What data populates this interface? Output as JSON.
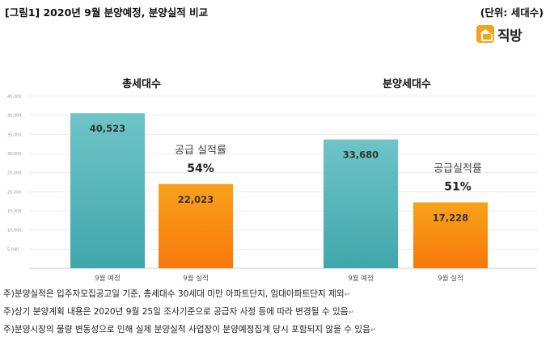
{
  "header": {
    "title": "[그림1] 2020년 9월 분양예정, 분양실적 비교",
    "unit": "(단위: 세대수)"
  },
  "logo": {
    "icon": "house-logo-icon",
    "text": "직방",
    "color": "#f5a31a"
  },
  "chart_data": {
    "type": "bar",
    "yticks": [
      "5,000",
      "10,000",
      "15,000",
      "20,000",
      "25,000",
      "30,000",
      "35,000",
      "40,000",
      "45,000"
    ],
    "ylim": [
      0,
      45000
    ],
    "grid": true,
    "panels": [
      {
        "title": "총세대수",
        "categories": [
          "9월 예정",
          "9월 실적"
        ],
        "values": [
          40523,
          22023
        ],
        "value_labels": [
          "40,523",
          "22,023"
        ],
        "annotation_label": "공급 실적률",
        "annotation_value": "54%"
      },
      {
        "title": "분양세대수",
        "categories": [
          "9월 예정",
          "9월 실적"
        ],
        "values": [
          33680,
          17228
        ],
        "value_labels": [
          "33,680",
          "17,228"
        ],
        "annotation_label": "공급실적률",
        "annotation_value": "51%"
      }
    ],
    "colors": {
      "planned": "#5bb8bc",
      "actual": "#f7950f"
    }
  },
  "notes": [
    "주)분양실적은 입주자모집공고일 기준, 총세대수 30세대 미만 아파트단지, 임대아파트단지 제외",
    "주)상기 분양계획 내용은 2020년 9월 25일 조사기준으로 공급자 사정 등에 따라 변경될 수 있음",
    "주)분양시장의 물량 변동성으로 인해 실제 분양실적 사업장이 분양예정집계 당시 포함되지 않을 수 있음"
  ]
}
